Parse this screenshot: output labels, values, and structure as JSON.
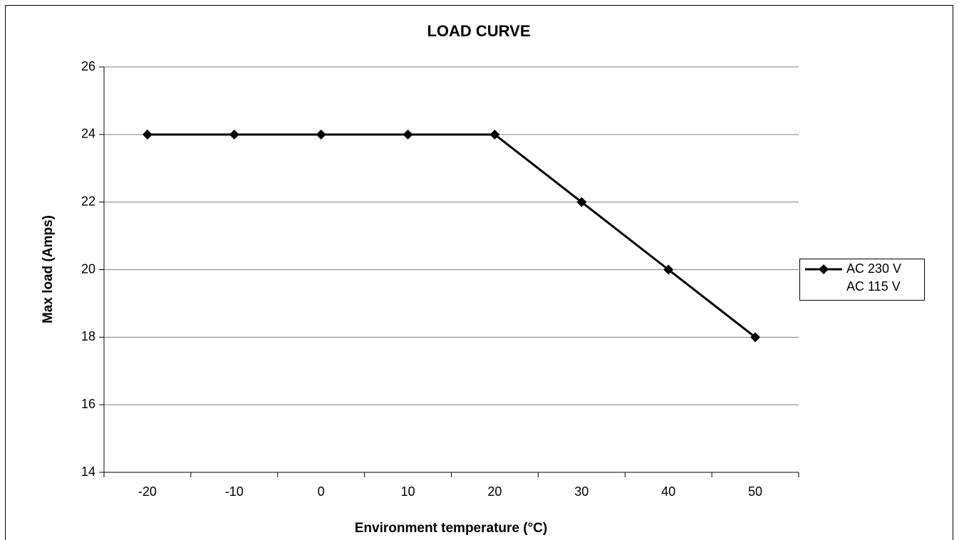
{
  "chart_data": {
    "type": "line",
    "title": "LOAD CURVE",
    "x_label": "Environment temperature (°C)",
    "y_label": "Max load (Amps)",
    "categories": [
      "-20",
      "-10",
      "0",
      "10",
      "20",
      "30",
      "40",
      "50"
    ],
    "series": [
      {
        "name": "AC 230 V",
        "color": "#000000",
        "values": [
          24,
          24,
          24,
          24,
          24,
          22,
          20,
          18
        ]
      },
      {
        "name": "AC 115 V",
        "color": "#ffffff",
        "values": [
          null,
          null,
          null,
          null,
          null,
          null,
          null,
          null
        ]
      }
    ],
    "ylim": [
      14,
      26
    ],
    "yticks": [
      14,
      16,
      18,
      20,
      22,
      24,
      26
    ],
    "grid": true,
    "legend": "right"
  }
}
